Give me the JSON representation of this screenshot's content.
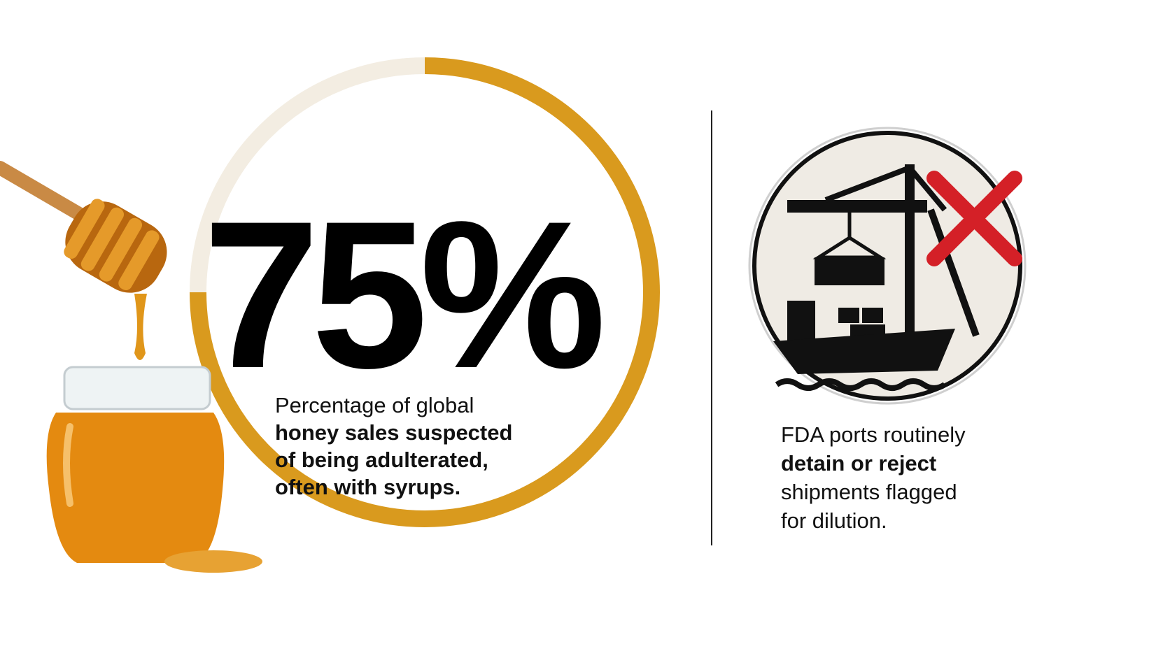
{
  "stat": {
    "type": "progress-ring",
    "value": 75,
    "value_label": "75%",
    "range": [
      0,
      100
    ],
    "color": "#d99a1e",
    "track_color": "#f3ede2"
  },
  "left_text": {
    "lines": [
      {
        "text": "Percentage of global",
        "bold": false
      },
      {
        "text": "honey sales suspected",
        "bold": true
      },
      {
        "text": "of being adulterated,",
        "bold": true
      },
      {
        "text": "often with syrups.",
        "bold": true
      }
    ]
  },
  "right_text": {
    "lines": [
      {
        "text": "FDA ports routinely",
        "bold": false
      },
      {
        "text": "detain or reject",
        "bold": true
      },
      {
        "text": "shipments flagged",
        "bold": false
      },
      {
        "text": "for dilution.",
        "bold": false
      }
    ]
  }
}
